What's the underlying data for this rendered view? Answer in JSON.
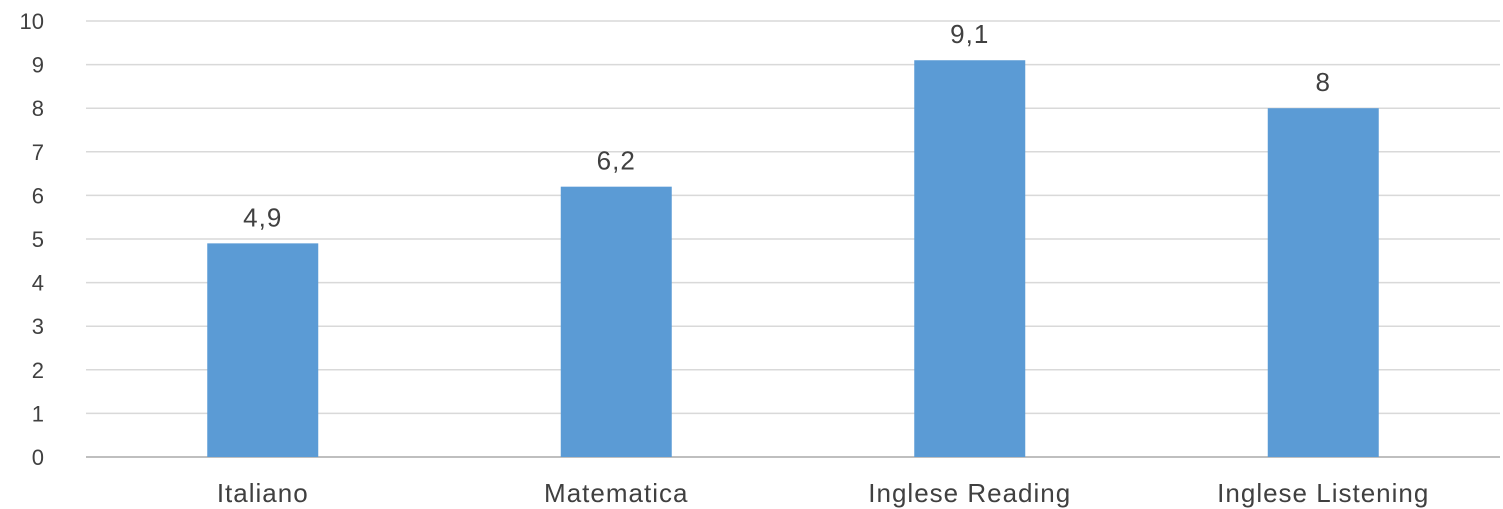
{
  "chart_data": {
    "type": "bar",
    "categories": [
      "Italiano",
      "Matematica",
      "Inglese Reading",
      "Inglese Listening"
    ],
    "values": [
      4.9,
      6.2,
      9.1,
      8
    ],
    "data_labels": [
      "4,9",
      "6,2",
      "9,1",
      "8"
    ],
    "y_ticks": [
      "0",
      "1",
      "2",
      "3",
      "4",
      "5",
      "6",
      "7",
      "8",
      "9",
      "10"
    ],
    "ylim": [
      0,
      10
    ],
    "grid": true,
    "legend": "none",
    "bar_color": "#5b9bd5"
  }
}
